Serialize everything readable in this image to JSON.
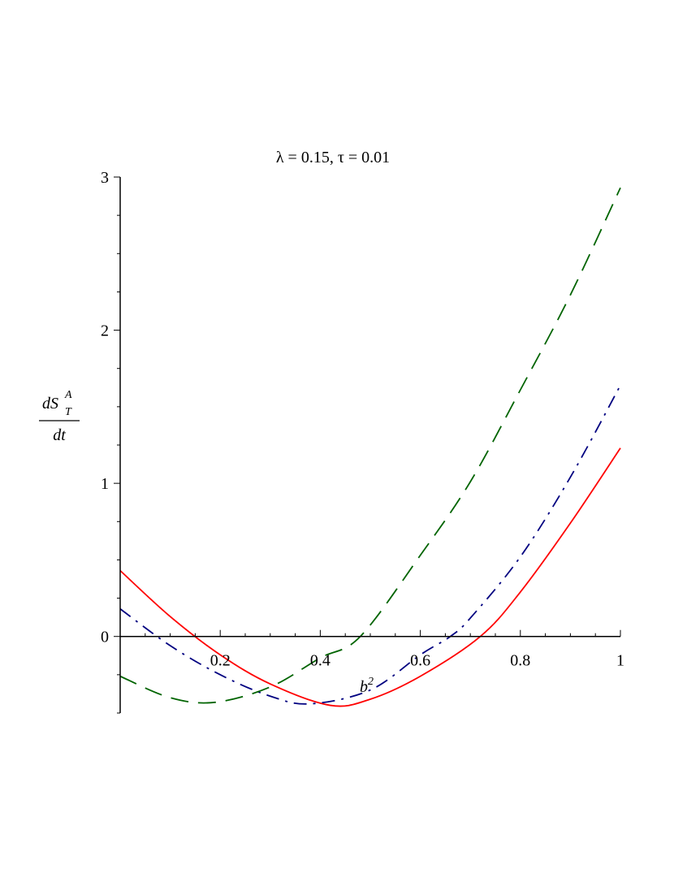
{
  "chart_data": {
    "type": "line",
    "title": "λ = 0.15, τ = 0.01",
    "xlabel": {
      "base": "b",
      "sup": "2"
    },
    "ylabel": {
      "num_d": "d",
      "num_S": "S",
      "num_sub": "T",
      "num_sup": "A",
      "den": "dt"
    },
    "xlim": [
      0,
      1
    ],
    "ylim": [
      -0.5,
      3
    ],
    "xticks": [
      {
        "value": 0.2,
        "label": "0.2"
      },
      {
        "value": 0.4,
        "label": "0.4"
      },
      {
        "value": 0.6,
        "label": "0.6"
      },
      {
        "value": 0.8,
        "label": "0.8"
      },
      {
        "value": 1,
        "label": "1"
      }
    ],
    "yticks": [
      {
        "value": 0,
        "label": "0"
      },
      {
        "value": 1,
        "label": "1"
      },
      {
        "value": 2,
        "label": "2"
      },
      {
        "value": 3,
        "label": "3"
      }
    ],
    "grid": false,
    "series": [
      {
        "style": "solid",
        "color": "#ff0000",
        "x": [
          0,
          0.1,
          0.2,
          0.3,
          0.42,
          0.5,
          0.6,
          0.72,
          0.8,
          0.9,
          1
        ],
        "y": [
          0.43,
          0.13,
          -0.12,
          -0.31,
          -0.45,
          -0.41,
          -0.26,
          0.0,
          0.29,
          0.74,
          1.23
        ]
      },
      {
        "style": "dash-dot",
        "color": "#000080",
        "x": [
          0,
          0.1,
          0.2,
          0.3,
          0.38,
          0.5,
          0.6,
          0.66,
          0.7,
          0.8,
          0.9,
          1
        ],
        "y": [
          0.18,
          -0.06,
          -0.25,
          -0.39,
          -0.44,
          -0.35,
          -0.12,
          0.0,
          0.12,
          0.52,
          1.04,
          1.64
        ]
      },
      {
        "style": "dashed",
        "color": "#006400",
        "x": [
          0,
          0.1,
          0.19,
          0.3,
          0.4,
          0.48,
          0.6,
          0.7,
          0.8,
          0.9,
          1
        ],
        "y": [
          -0.26,
          -0.4,
          -0.43,
          -0.33,
          -0.14,
          0.0,
          0.53,
          1.01,
          1.61,
          2.23,
          2.93
        ]
      }
    ]
  }
}
